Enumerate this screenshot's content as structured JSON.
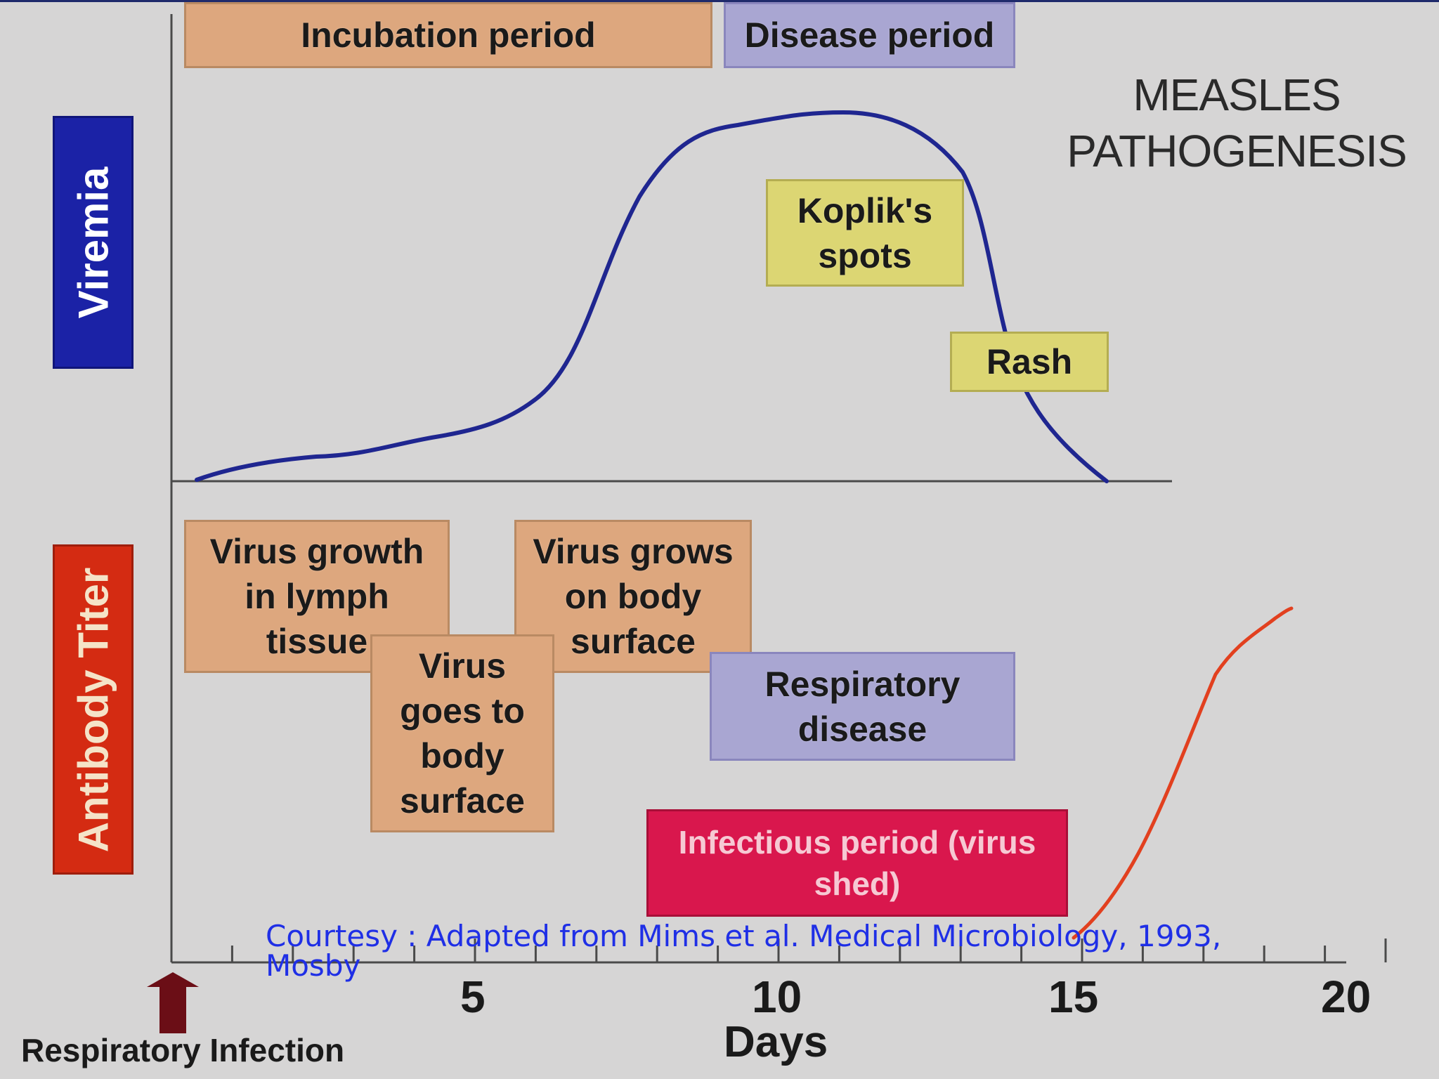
{
  "title": "MEASLES\nPATHOGENESIS",
  "y_labels": {
    "top": "Viremia",
    "bottom": "Antibody Titer"
  },
  "period_boxes": {
    "incubation": "Incubation period",
    "disease": "Disease period"
  },
  "symptom_boxes": {
    "koplik": "Koplik's\nspots",
    "rash": "Rash"
  },
  "stage_boxes": {
    "lymph": "Virus growth\nin lymph\ntissue",
    "goes_to_surface": "Virus\ngoes to\nbody\nsurface",
    "grows_on_surface": "Virus grows\non body\nsurface",
    "respiratory": "Respiratory\ndisease",
    "infectious": "Infectious period (virus\nshed)"
  },
  "x_axis": {
    "label": "Days",
    "ticks": [
      "5",
      "10",
      "15",
      "20"
    ],
    "marker_label": "Respiratory Infection"
  },
  "courtesy": "Courtesy : Adapted from Mims et al. Medical Microbiology, 1993,\nMosby",
  "colors": {
    "viremia_label": "#1b22a6",
    "antibody_label": "#d42b12",
    "viremia_curve": "#1f2690",
    "antibody_curve": "#e2401f",
    "axis": "#4a4a4a",
    "arrow": "#6b0e16"
  }
}
